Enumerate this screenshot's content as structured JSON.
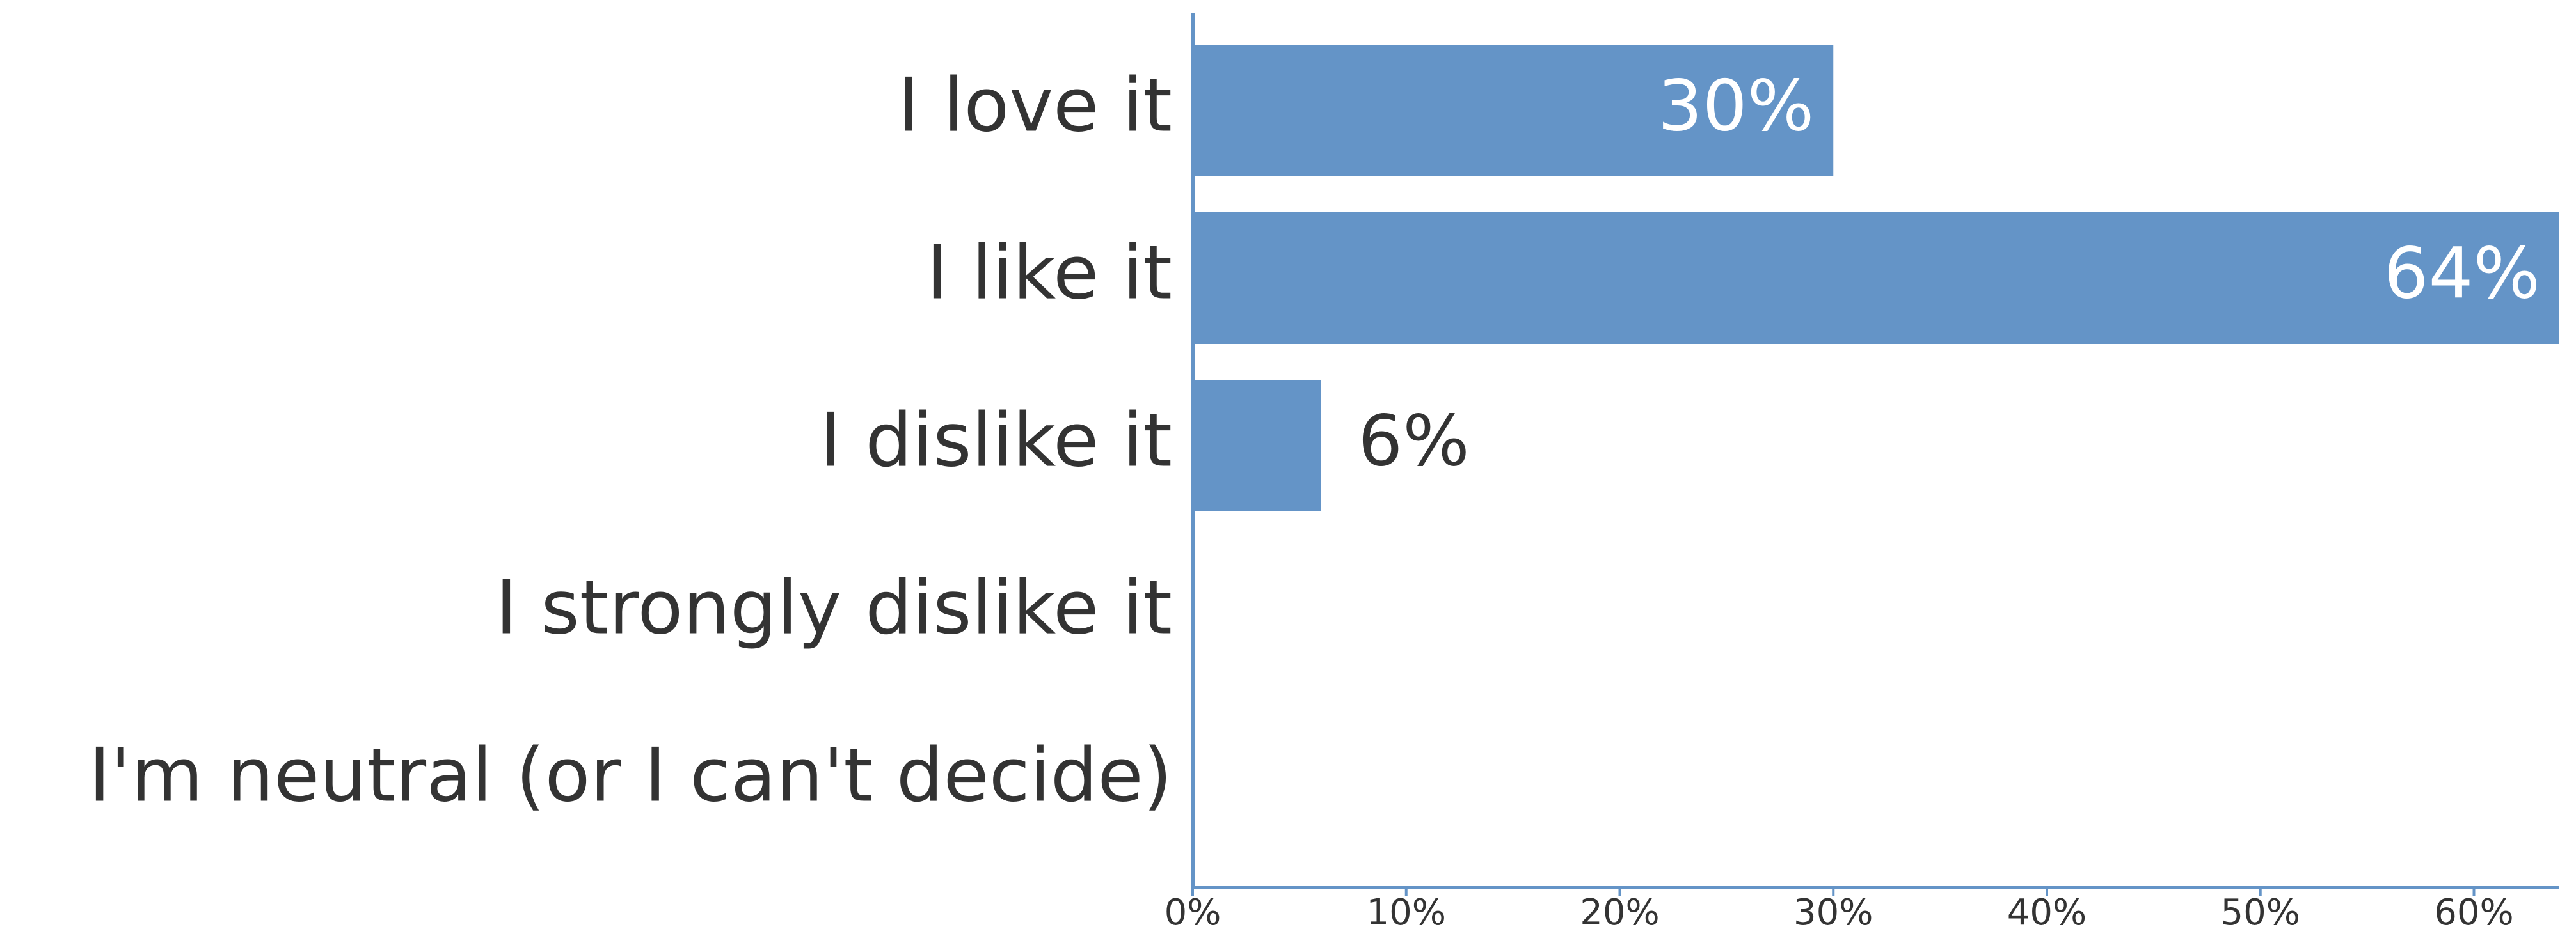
{
  "chart_data": {
    "type": "bar",
    "orientation": "horizontal",
    "title": "",
    "xlabel": "",
    "ylabel": "",
    "categories": [
      "I love it",
      "I like it",
      "I dislike it",
      "I strongly dislike it",
      "I'm neutral (or I can't decide)"
    ],
    "values": [
      30,
      64,
      6,
      0,
      0
    ],
    "data_labels": [
      "30%",
      "64%",
      "6%",
      "",
      ""
    ],
    "xlim": [
      0,
      64
    ],
    "x_ticks": [
      0,
      10,
      20,
      30,
      40,
      50,
      60
    ],
    "x_tick_labels": [
      "0%",
      "10%",
      "20%",
      "30%",
      "40%",
      "50%",
      "60%"
    ],
    "grid": false,
    "legend": "none",
    "bar_color": "#6494C7",
    "axis_color": "#6494C7"
  }
}
